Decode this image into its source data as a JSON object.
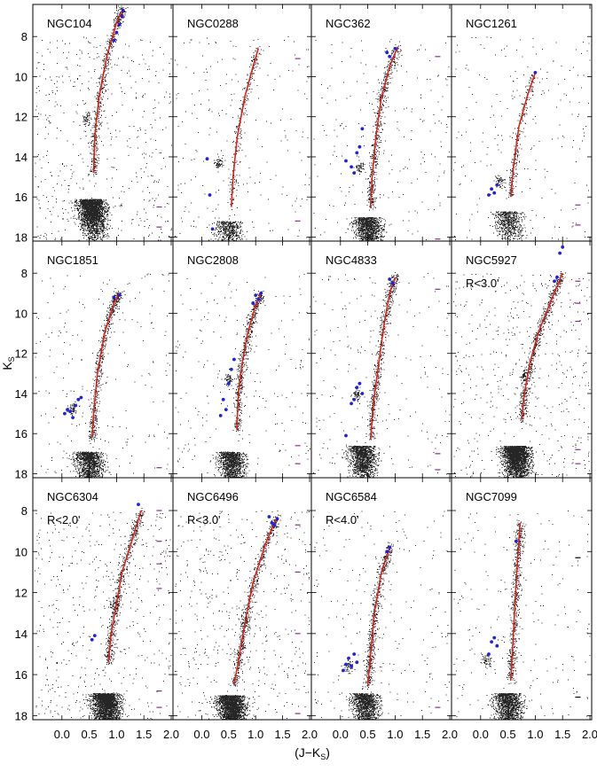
{
  "chart_data": {
    "type": "scatter",
    "title": "",
    "xlabel": "(J−K",
    "xlabel_sub": "S",
    "xlabel_close": ")",
    "ylabel": "K",
    "ylabel_sub": "S",
    "xlim": [
      -0.5,
      2.0
    ],
    "ylim": [
      18.2,
      6.4
    ],
    "x_ticks": [
      "0.0",
      "0.5",
      "1.0",
      "1.5",
      "2.0"
    ],
    "x_tick_values": [
      0.0,
      0.5,
      1.0,
      1.5,
      2.0
    ],
    "y_ticks": [
      "8",
      "10",
      "12",
      "14",
      "16",
      "18"
    ],
    "y_tick_values": [
      8,
      10,
      12,
      14,
      16,
      18
    ],
    "colors": {
      "points": "#000000",
      "fiducial": "#e0201a",
      "members": "#1f1fe6",
      "errorbar_dark": "#000000",
      "errorbar_purple": "#8b2a8b"
    },
    "series_legend": [
      "stars",
      "fiducial RGB line",
      "selected RGB stars",
      "photometric error bars"
    ],
    "panels": [
      {
        "name": "NGC104",
        "sub": "",
        "ridge": [
          [
            0.58,
            14.8
          ],
          [
            0.6,
            13
          ],
          [
            0.68,
            11
          ],
          [
            0.82,
            9
          ],
          [
            1.0,
            7.3
          ],
          [
            1.12,
            6.6
          ]
        ],
        "to": [
          0.55,
          16.7
        ],
        "clump": [
          0.45,
          12.1
        ],
        "density": "heavy",
        "blue": [
          [
            0.95,
            8.2
          ],
          [
            1.0,
            7.8
          ],
          [
            1.05,
            7.4
          ],
          [
            1.1,
            7.0
          ],
          [
            1.12,
            6.7
          ]
        ],
        "err_y": [
          16.5,
          17.5
        ],
        "err_color": "purple"
      },
      {
        "name": "NGC0288",
        "sub": "",
        "ridge": [
          [
            0.55,
            16.5
          ],
          [
            0.58,
            15
          ],
          [
            0.66,
            13
          ],
          [
            0.8,
            11
          ],
          [
            0.95,
            9.5
          ],
          [
            1.05,
            8.6
          ]
        ],
        "to": [
          0.5,
          17.8
        ],
        "clump": [
          0.3,
          14.3
        ],
        "density": "light",
        "blue": [
          [
            0.1,
            14.1
          ],
          [
            0.15,
            15.9
          ],
          [
            0.2,
            17.6
          ]
        ],
        "err_y": [
          9.1,
          17.2
        ],
        "err_color": "purple"
      },
      {
        "name": "NGC362",
        "sub": "",
        "ridge": [
          [
            0.55,
            16.5
          ],
          [
            0.58,
            15
          ],
          [
            0.65,
            13
          ],
          [
            0.75,
            11
          ],
          [
            0.9,
            9.5
          ],
          [
            1.05,
            8.5
          ]
        ],
        "to": [
          0.5,
          17.6
        ],
        "clump": [
          0.35,
          14.5
        ],
        "density": "medium",
        "blue": [
          [
            0.1,
            14.2
          ],
          [
            0.2,
            14.5
          ],
          [
            0.3,
            13.8
          ],
          [
            0.35,
            13.5
          ],
          [
            0.25,
            14.8
          ],
          [
            0.9,
            9.0
          ],
          [
            0.85,
            8.8
          ],
          [
            1.0,
            8.6
          ],
          [
            0.4,
            12.6
          ]
        ],
        "err_y": [
          9.0,
          18.1
        ],
        "err_color": "purple"
      },
      {
        "name": "NGC1261",
        "sub": "",
        "ridge": [
          [
            0.55,
            16
          ],
          [
            0.6,
            14.5
          ],
          [
            0.7,
            12.5
          ],
          [
            0.85,
            11
          ],
          [
            1.0,
            9.8
          ]
        ],
        "to": [
          0.5,
          17.3
        ],
        "clump": [
          0.35,
          15.2
        ],
        "density": "light",
        "blue": [
          [
            0.15,
            15.9
          ],
          [
            0.2,
            15.6
          ],
          [
            0.25,
            15.8
          ],
          [
            0.3,
            15.4
          ],
          [
            1.0,
            9.8
          ]
        ],
        "err_y": [
          16.4,
          17.4
        ],
        "err_color": "purple"
      },
      {
        "name": "NGC1851",
        "sub": "",
        "ridge": [
          [
            0.55,
            16.2
          ],
          [
            0.58,
            15
          ],
          [
            0.65,
            13
          ],
          [
            0.78,
            11
          ],
          [
            0.95,
            9.5
          ],
          [
            1.05,
            9.0
          ]
        ],
        "to": [
          0.5,
          17.5
        ],
        "clump": [
          0.2,
          14.8
        ],
        "density": "medium",
        "blue": [
          [
            0.05,
            15.0
          ],
          [
            0.1,
            14.8
          ],
          [
            0.15,
            14.9
          ],
          [
            0.2,
            15.2
          ],
          [
            0.25,
            14.6
          ],
          [
            0.3,
            14.3
          ],
          [
            0.35,
            14.2
          ],
          [
            0.95,
            9.2
          ],
          [
            1.05,
            9.1
          ]
        ],
        "err_y": [
          17.7
        ],
        "err_color": "purple"
      },
      {
        "name": "NGC2808",
        "sub": "",
        "ridge": [
          [
            0.65,
            15.8
          ],
          [
            0.68,
            14
          ],
          [
            0.75,
            12.5
          ],
          [
            0.85,
            11
          ],
          [
            1.0,
            9.6
          ],
          [
            1.1,
            9.0
          ]
        ],
        "to": [
          0.55,
          17.5
        ],
        "clump": [
          0.5,
          13.3
        ],
        "density": "medium",
        "blue": [
          [
            0.35,
            15.1
          ],
          [
            0.4,
            14.3
          ],
          [
            0.45,
            14.8
          ],
          [
            0.5,
            13.5
          ],
          [
            0.55,
            12.8
          ],
          [
            0.6,
            12.3
          ],
          [
            0.95,
            9.5
          ],
          [
            1.0,
            9.1
          ],
          [
            1.05,
            9.3
          ],
          [
            1.1,
            9.0
          ]
        ],
        "err_y": [
          16.6,
          17.5
        ],
        "err_color": "purple"
      },
      {
        "name": "NGC4833",
        "sub": "",
        "ridge": [
          [
            0.55,
            16.3
          ],
          [
            0.6,
            14.5
          ],
          [
            0.7,
            12.5
          ],
          [
            0.8,
            10.5
          ],
          [
            0.9,
            9.0
          ],
          [
            1.0,
            8.2
          ]
        ],
        "to": [
          0.4,
          17.2
        ],
        "clump": [
          0.3,
          14.0
        ],
        "density": "medium",
        "blue": [
          [
            0.2,
            14.5
          ],
          [
            0.25,
            14.3
          ],
          [
            0.3,
            13.7
          ],
          [
            0.35,
            13.5
          ],
          [
            0.4,
            14.0
          ],
          [
            0.9,
            8.3
          ],
          [
            0.95,
            8.5
          ],
          [
            0.1,
            16.1
          ]
        ],
        "err_y": [
          8.8,
          17.0,
          17.8
        ],
        "err_color": "purple"
      },
      {
        "name": "NGC5927",
        "sub": "R<3.0'",
        "ridge": [
          [
            0.75,
            15.3
          ],
          [
            0.8,
            14
          ],
          [
            0.9,
            12.5
          ],
          [
            1.05,
            11
          ],
          [
            1.3,
            9.3
          ],
          [
            1.5,
            8.0
          ]
        ],
        "to": [
          0.65,
          17.2
        ],
        "clump": [
          0.8,
          13.1
        ],
        "density": "heavy",
        "blue": [
          [
            1.35,
            8.4
          ],
          [
            1.4,
            8.2
          ],
          [
            1.45,
            7.0
          ],
          [
            1.5,
            6.7
          ]
        ],
        "err_y": [
          8.4,
          9.5,
          10.4,
          16.8,
          17.5
        ],
        "err_color": "purple"
      },
      {
        "name": "NGC6304",
        "sub": "R<2.0'",
        "ridge": [
          [
            0.85,
            15.4
          ],
          [
            0.9,
            14
          ],
          [
            1.0,
            12.5
          ],
          [
            1.1,
            11
          ],
          [
            1.3,
            9.3
          ],
          [
            1.45,
            8.0
          ]
        ],
        "to": [
          0.8,
          17.5
        ],
        "clump": [
          0.95,
          12.6
        ],
        "density": "heavy",
        "blue": [
          [
            0.55,
            14.3
          ],
          [
            0.6,
            14.1
          ],
          [
            1.4,
            7.7
          ]
        ],
        "err_y": [
          8.0,
          9.5,
          10.6,
          11.8,
          16.8,
          17.6
        ],
        "err_color": "purple"
      },
      {
        "name": "NGC6496",
        "sub": "R<3.0'",
        "ridge": [
          [
            0.6,
            16.5
          ],
          [
            0.7,
            15
          ],
          [
            0.8,
            13.5
          ],
          [
            0.95,
            11.5
          ],
          [
            1.2,
            9.5
          ],
          [
            1.4,
            8.3
          ]
        ],
        "to": [
          0.55,
          17.6
        ],
        "clump": [
          0.8,
          13.4
        ],
        "density": "heavy",
        "blue": [
          [
            1.3,
            8.6
          ],
          [
            1.35,
            8.7
          ],
          [
            1.4,
            8.4
          ],
          [
            1.25,
            8.3
          ]
        ],
        "err_y": [
          8.7,
          11.0,
          14.0,
          17.9
        ],
        "err_color": "purple"
      },
      {
        "name": "NGC6584",
        "sub": "R<4.0'",
        "ridge": [
          [
            0.5,
            16.5
          ],
          [
            0.55,
            15
          ],
          [
            0.62,
            13
          ],
          [
            0.75,
            11
          ],
          [
            0.9,
            9.8
          ]
        ],
        "to": [
          0.45,
          17.5
        ],
        "clump": [
          0.15,
          15.6
        ],
        "density": "medium",
        "blue": [
          [
            0.05,
            15.8
          ],
          [
            0.1,
            15.5
          ],
          [
            0.15,
            15.2
          ],
          [
            0.2,
            15.6
          ],
          [
            0.25,
            15.0
          ],
          [
            0.3,
            15.4
          ],
          [
            0.9,
            9.8
          ],
          [
            0.85,
            10.0
          ]
        ],
        "err_y": [
          17.6
        ],
        "err_color": "purple"
      },
      {
        "name": "NGC7099",
        "sub": "",
        "ridge": [
          [
            0.55,
            16.3
          ],
          [
            0.58,
            15
          ],
          [
            0.62,
            13
          ],
          [
            0.66,
            11
          ],
          [
            0.7,
            9.5
          ],
          [
            0.72,
            8.6
          ]
        ],
        "to": [
          0.5,
          17.5
        ],
        "clump": [
          0.1,
          15.3
        ],
        "density": "medium",
        "blue": [
          [
            0.15,
            15.0
          ],
          [
            0.2,
            14.4
          ],
          [
            0.25,
            14.2
          ],
          [
            0.3,
            14.6
          ],
          [
            0.65,
            9.5
          ]
        ],
        "err_y": [
          10.3,
          17.1
        ],
        "err_color": "dark"
      }
    ]
  }
}
